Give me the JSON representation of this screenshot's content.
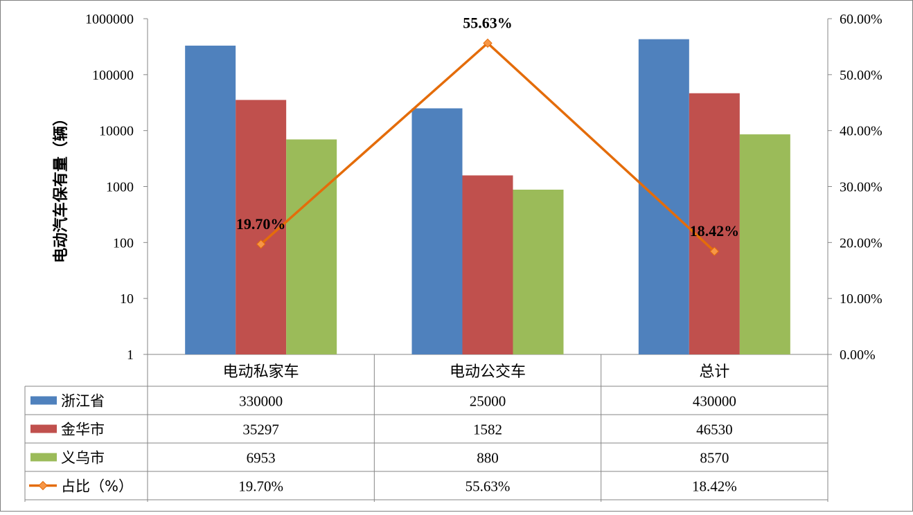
{
  "chart_data": {
    "type": "bar",
    "categories": [
      "电动私家车",
      "电动公交车",
      "总计"
    ],
    "series": [
      {
        "name": "浙江省",
        "type": "bar",
        "axis": "left",
        "color": "#4f81bd",
        "values": [
          330000,
          25000,
          430000
        ],
        "labels": [
          "330000",
          "25000",
          "430000"
        ]
      },
      {
        "name": "金华市",
        "type": "bar",
        "axis": "left",
        "color": "#c0504d",
        "values": [
          35297,
          1582,
          46530
        ],
        "labels": [
          "35297",
          "1582",
          "46530"
        ]
      },
      {
        "name": "义乌市",
        "type": "bar",
        "axis": "left",
        "color": "#9bbb59",
        "values": [
          6953,
          880,
          8570
        ],
        "labels": [
          "6953",
          "880",
          "8570"
        ]
      },
      {
        "name": "占比（%）",
        "type": "line",
        "axis": "right",
        "color": "#e46c0a",
        "values": [
          19.7,
          55.63,
          18.42
        ],
        "labels": [
          "19.70%",
          "55.63%",
          "18.42%"
        ]
      }
    ],
    "ylabel": "电动汽车保有量（辆）",
    "y_left": {
      "scale": "log",
      "range": [
        1,
        1000000
      ],
      "ticks": [
        "1",
        "10",
        "100",
        "1000",
        "10000",
        "100000",
        "1000000"
      ]
    },
    "y_right": {
      "scale": "linear",
      "range": [
        0,
        60
      ],
      "ticks": [
        "0.00%",
        "10.00%",
        "20.00%",
        "30.00%",
        "40.00%",
        "50.00%",
        "60.00%"
      ]
    },
    "grid": false,
    "data_table": true
  }
}
